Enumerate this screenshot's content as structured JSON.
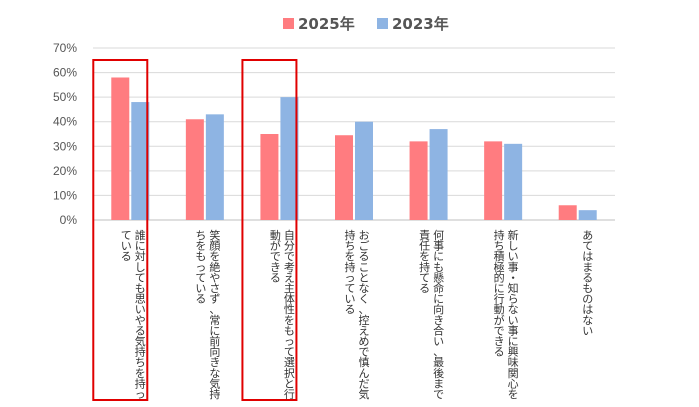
{
  "chart_data": {
    "type": "bar",
    "title": "",
    "xlabel": "",
    "ylabel": "",
    "ylim": [
      0,
      0.7
    ],
    "yticks": [
      "0%",
      "10%",
      "20%",
      "30%",
      "40%",
      "50%",
      "60%",
      "70%"
    ],
    "legend": "top-center",
    "categories": [
      [
        "誰に対しても思いやる気持ちを持っ",
        "ている"
      ],
      [
        "笑顔を絶やさず、常に前向きな気持",
        "ちをもっている"
      ],
      [
        "自分で考え主体性をもって選択と行",
        "動ができる"
      ],
      [
        "おごることなく、控えめで慎んだ気",
        "持ちを持っている"
      ],
      [
        "何事にも懸命に向き合い、最後まで",
        "責任を持てる"
      ],
      [
        "新しい事・知らない事に興味関心を",
        "持ち積極的に行動ができる"
      ],
      [
        "あてはまるものはない"
      ]
    ],
    "series": [
      {
        "name": "2025年",
        "color": "#ff7c80",
        "values": [
          0.58,
          0.41,
          0.35,
          0.345,
          0.32,
          0.32,
          0.06
        ]
      },
      {
        "name": "2023年",
        "color": "#8eb4e3",
        "values": [
          0.48,
          0.43,
          0.5,
          0.4,
          0.37,
          0.31,
          0.04
        ]
      }
    ],
    "highlighted_categories": [
      0,
      2
    ],
    "highlight_color": "#e00000"
  }
}
